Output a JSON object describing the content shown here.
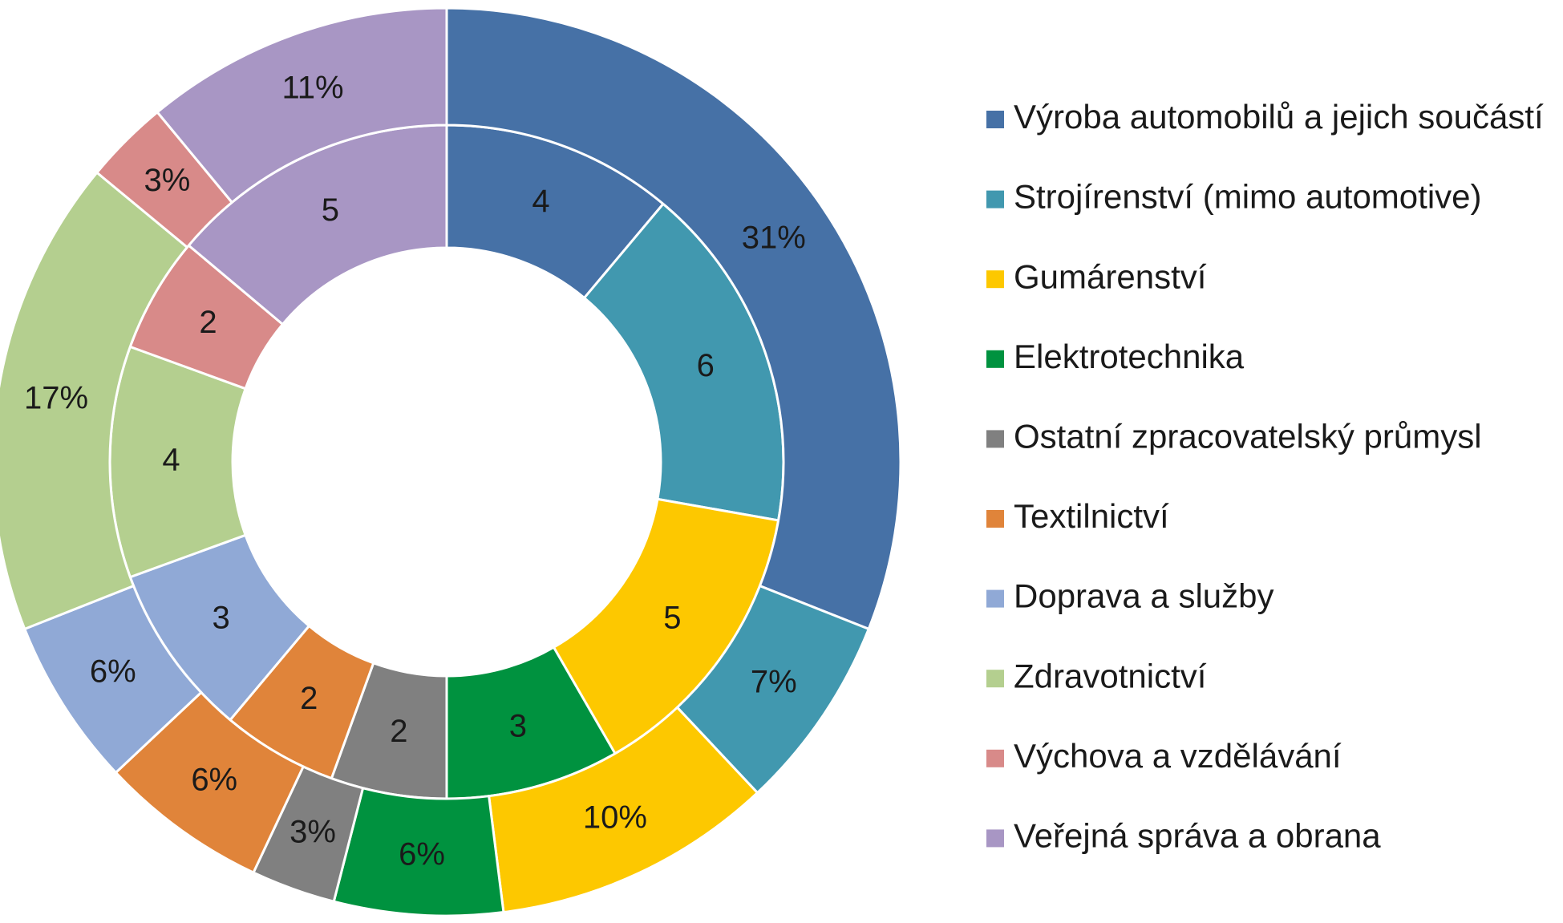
{
  "chart_data": {
    "type": "doughnut",
    "categories": [
      "Výroba automobilů a jejich součástí",
      "Strojírenství (mimo automotive)",
      "Gumárenství",
      "Elektrotechnika",
      "Ostatní zpracovatelský průmysl",
      "Textilnictví",
      "Doprava a služby",
      "Zdravotnictví",
      "Výchova a vzdělávání",
      "Veřejná správa a obrana"
    ],
    "colors": [
      "#4671a6",
      "#4198af",
      "#fdc800",
      "#00923f",
      "#808080",
      "#e0843a",
      "#90a9d6",
      "#b4cf8f",
      "#d88a89",
      "#a896c4"
    ],
    "series": [
      {
        "values": [
          4,
          6,
          5,
          3,
          2,
          2,
          3,
          4,
          2,
          5
        ]
      },
      {
        "values": [
          31,
          7,
          10,
          6,
          3,
          6,
          6,
          17,
          3,
          11
        ],
        "value_labels": [
          "31%",
          "7%",
          "10%",
          "6%",
          "3%",
          "6%",
          "6%",
          "17%",
          "3%",
          "11%"
        ]
      }
    ],
    "legend": "right"
  }
}
